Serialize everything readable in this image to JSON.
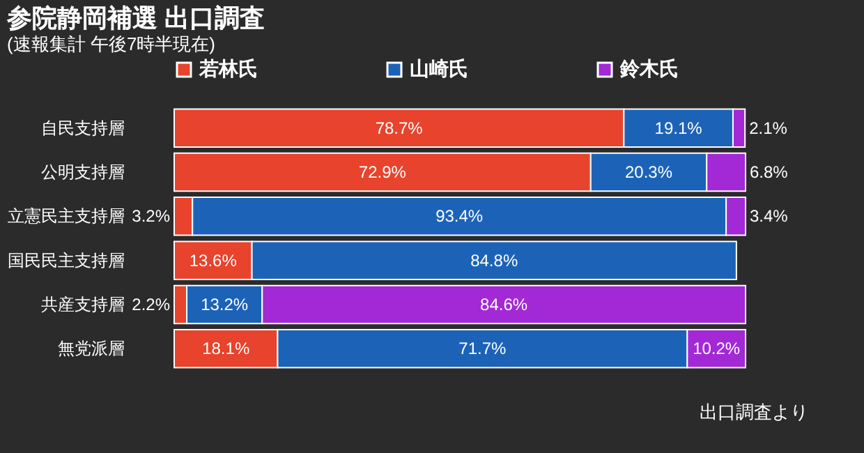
{
  "chart_data": {
    "type": "bar",
    "orientation": "horizontal",
    "stacked": true,
    "title": "参院静岡補選 出口調査",
    "subtitle": "(速報集計 午後7時半現在)",
    "categories": [
      "自民支持層",
      "公明支持層",
      "立憲民主支持層",
      "国民民主支持層",
      "共産支持層",
      "無党派層"
    ],
    "series": [
      {
        "name": "若林氏",
        "color": "#e8432c",
        "values": [
          78.7,
          72.9,
          3.2,
          13.6,
          2.2,
          18.1
        ],
        "value_labels": [
          "78.7%",
          "72.9%",
          "3.2%",
          "13.6%",
          "2.2%",
          "18.1%"
        ]
      },
      {
        "name": "山崎氏",
        "color": "#1c63b8",
        "values": [
          19.1,
          20.3,
          93.4,
          84.8,
          13.2,
          71.7
        ],
        "value_labels": [
          "19.1%",
          "20.3%",
          "93.4%",
          "84.8%",
          "13.2%",
          "71.7%"
        ]
      },
      {
        "name": "鈴木氏",
        "color": "#a328d6",
        "values": [
          2.1,
          6.8,
          3.4,
          null,
          84.6,
          10.2
        ],
        "value_labels": [
          "2.1%",
          "6.8%",
          "3.4%",
          null,
          "84.6%",
          "10.2%"
        ]
      }
    ],
    "legend": "top",
    "annotations": [
      "出口調査より"
    ]
  }
}
